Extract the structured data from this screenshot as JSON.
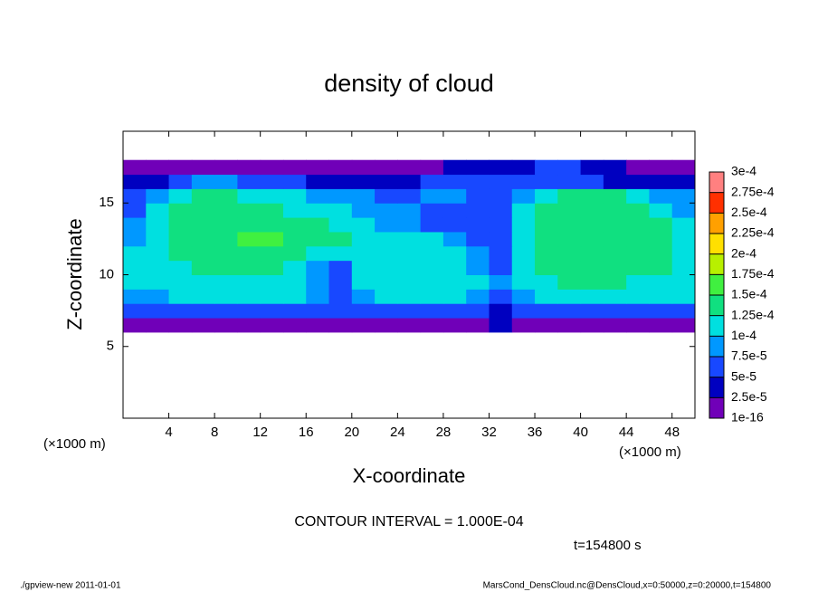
{
  "chart_data": {
    "type": "heatmap",
    "title": "density of cloud",
    "xlabel": "X-coordinate",
    "ylabel": "Z-coordinate",
    "xunit": "(×1000 m)",
    "xunit2": "(×1000 m)",
    "note": "CONTOUR INTERVAL = 1.000E-04",
    "time": "t=154800 s",
    "footer_left": "./gpview-new  2011-01-01",
    "footer_right": "MarsCond_DensCloud.nc@DensCloud,x=0:50000,z=0:20000,t=154800",
    "xlim": [
      0,
      50
    ],
    "ylim": [
      0,
      20
    ],
    "xticks": [
      4,
      8,
      12,
      16,
      20,
      24,
      28,
      32,
      36,
      40,
      44,
      48
    ],
    "yticks": [
      5,
      10,
      15
    ],
    "x": [
      1,
      3,
      5,
      7,
      9,
      11,
      13,
      15,
      17,
      19,
      21,
      23,
      25,
      27,
      29,
      31,
      33,
      35,
      37,
      39,
      41,
      43,
      45,
      47,
      49
    ],
    "y": [
      6.5,
      7.5,
      8.5,
      9.5,
      10.5,
      11.5,
      12.5,
      13.5,
      14.5,
      15.5,
      16.5,
      17.5
    ],
    "z": [
      [
        1e-05,
        1e-05,
        1e-05,
        1e-05,
        1e-05,
        1e-05,
        1e-05,
        1e-05,
        1e-05,
        2e-05,
        1e-05,
        1e-05,
        1e-05,
        1e-05,
        1e-05,
        1e-05,
        3e-05,
        1e-05,
        1e-05,
        1e-05,
        1e-05,
        1e-05,
        1e-05,
        1e-05,
        1e-05
      ],
      [
        5e-05,
        5e-05,
        6e-05,
        6e-05,
        7e-05,
        7e-05,
        7e-05,
        6e-05,
        6e-05,
        5e-05,
        6e-05,
        6e-05,
        7e-05,
        7e-05,
        7e-05,
        6e-05,
        4e-05,
        6e-05,
        6e-05,
        6e-05,
        6e-05,
        6e-05,
        6e-05,
        6e-05,
        6e-05
      ],
      [
        8e-05,
        9e-05,
        0.0001,
        0.0001,
        0.00011,
        0.00011,
        0.00011,
        0.0001,
        8e-05,
        6e-05,
        9e-05,
        0.0001,
        0.00011,
        0.00011,
        0.00011,
        9e-05,
        7e-05,
        9e-05,
        0.00011,
        0.00011,
        0.00011,
        0.00011,
        0.00011,
        0.00011,
        0.0001
      ],
      [
        0.0001,
        0.00011,
        0.00012,
        0.00012,
        0.00012,
        0.00012,
        0.00012,
        0.00011,
        8e-05,
        6e-05,
        0.0001,
        0.00011,
        0.00012,
        0.00012,
        0.00012,
        0.0001,
        8e-05,
        0.0001,
        0.00012,
        0.00013,
        0.00013,
        0.00013,
        0.00012,
        0.00012,
        0.00011
      ],
      [
        0.0001,
        0.00012,
        0.00012,
        0.00013,
        0.00013,
        0.00013,
        0.00013,
        0.00012,
        9e-05,
        7e-05,
        0.0001,
        0.00011,
        0.00012,
        0.00012,
        0.00011,
        9e-05,
        7e-05,
        0.0001,
        0.00013,
        0.00013,
        0.00014,
        0.00014,
        0.00013,
        0.00013,
        0.00011
      ],
      [
        0.0001,
        0.00012,
        0.00013,
        0.00013,
        0.00013,
        0.00014,
        0.00014,
        0.00013,
        0.00012,
        0.0001,
        0.00011,
        0.00011,
        0.00011,
        0.00011,
        0.0001,
        9e-05,
        7e-05,
        0.00011,
        0.00013,
        0.00014,
        0.00014,
        0.00014,
        0.00014,
        0.00013,
        0.00012
      ],
      [
        9e-05,
        0.00012,
        0.00013,
        0.00013,
        0.00014,
        0.00015,
        0.00015,
        0.00014,
        0.00013,
        0.00013,
        0.00012,
        0.00011,
        0.0001,
        0.0001,
        9e-05,
        7e-05,
        6e-05,
        0.00012,
        0.00013,
        0.00014,
        0.00014,
        0.00014,
        0.00013,
        0.00013,
        0.00011
      ],
      [
        8e-05,
        0.00012,
        0.00013,
        0.00013,
        0.00014,
        0.00014,
        0.00014,
        0.00014,
        0.00013,
        0.00012,
        0.00011,
        9e-05,
        8e-05,
        7e-05,
        7e-05,
        5e-05,
        5e-05,
        0.00012,
        0.00013,
        0.00014,
        0.00014,
        0.00014,
        0.00014,
        0.00013,
        0.0001
      ],
      [
        7e-05,
        0.00011,
        0.00013,
        0.00014,
        0.00014,
        0.00014,
        0.00013,
        0.00012,
        0.00011,
        0.0001,
        9e-05,
        8e-05,
        8e-05,
        7e-05,
        6e-05,
        5e-05,
        6e-05,
        0.00012,
        0.00013,
        0.00014,
        0.00014,
        0.00014,
        0.00013,
        0.00012,
        9e-05
      ],
      [
        5e-05,
        9e-05,
        0.00012,
        0.00013,
        0.00013,
        0.00012,
        0.00012,
        0.00011,
        9e-05,
        8e-05,
        8e-05,
        7e-05,
        6e-05,
        8e-05,
        8e-05,
        6e-05,
        5e-05,
        9e-05,
        0.00012,
        0.00013,
        0.00013,
        0.00013,
        0.00012,
        9e-05,
        8e-05
      ],
      [
        3e-05,
        4e-05,
        6e-05,
        8e-05,
        8e-05,
        6e-05,
        5e-05,
        5e-05,
        4e-05,
        4e-05,
        3e-05,
        3e-05,
        4e-05,
        5e-05,
        6e-05,
        6e-05,
        5e-05,
        6e-05,
        6e-05,
        6e-05,
        5e-05,
        4e-05,
        4e-05,
        3e-05,
        3e-05
      ],
      [
        1e-05,
        1e-05,
        1e-05,
        1e-05,
        1e-05,
        1e-05,
        1e-05,
        1e-05,
        1e-05,
        1e-05,
        1e-05,
        1e-05,
        1e-05,
        1e-05,
        3e-05,
        3e-05,
        3e-05,
        4e-05,
        6e-05,
        6e-05,
        4e-05,
        3e-05,
        2e-05,
        1e-05,
        1e-05
      ]
    ],
    "colorbar": {
      "levels": [
        {
          "value": 1e-16,
          "label": "1e-16"
        },
        {
          "value": 2.5e-05,
          "label": "2.5e-5"
        },
        {
          "value": 5e-05,
          "label": "5e-5"
        },
        {
          "value": 7.5e-05,
          "label": "7.5e-5"
        },
        {
          "value": 0.0001,
          "label": "1e-4"
        },
        {
          "value": 0.000125,
          "label": "1.25e-4"
        },
        {
          "value": 0.00015,
          "label": "1.5e-4"
        },
        {
          "value": 0.000175,
          "label": "1.75e-4"
        },
        {
          "value": 0.0002,
          "label": "2e-4"
        },
        {
          "value": 0.000225,
          "label": "2.25e-4"
        },
        {
          "value": 0.00025,
          "label": "2.5e-4"
        },
        {
          "value": 0.000275,
          "label": "2.75e-4"
        },
        {
          "value": 0.0003,
          "label": "3e-4"
        }
      ],
      "colors": [
        "#7000b8",
        "#0000c0",
        "#1848ff",
        "#0098ff",
        "#00e0e0",
        "#10e080",
        "#40f040",
        "#b8f000",
        "#ffe000",
        "#ffa000",
        "#ff3000",
        "#ff8080"
      ]
    }
  }
}
